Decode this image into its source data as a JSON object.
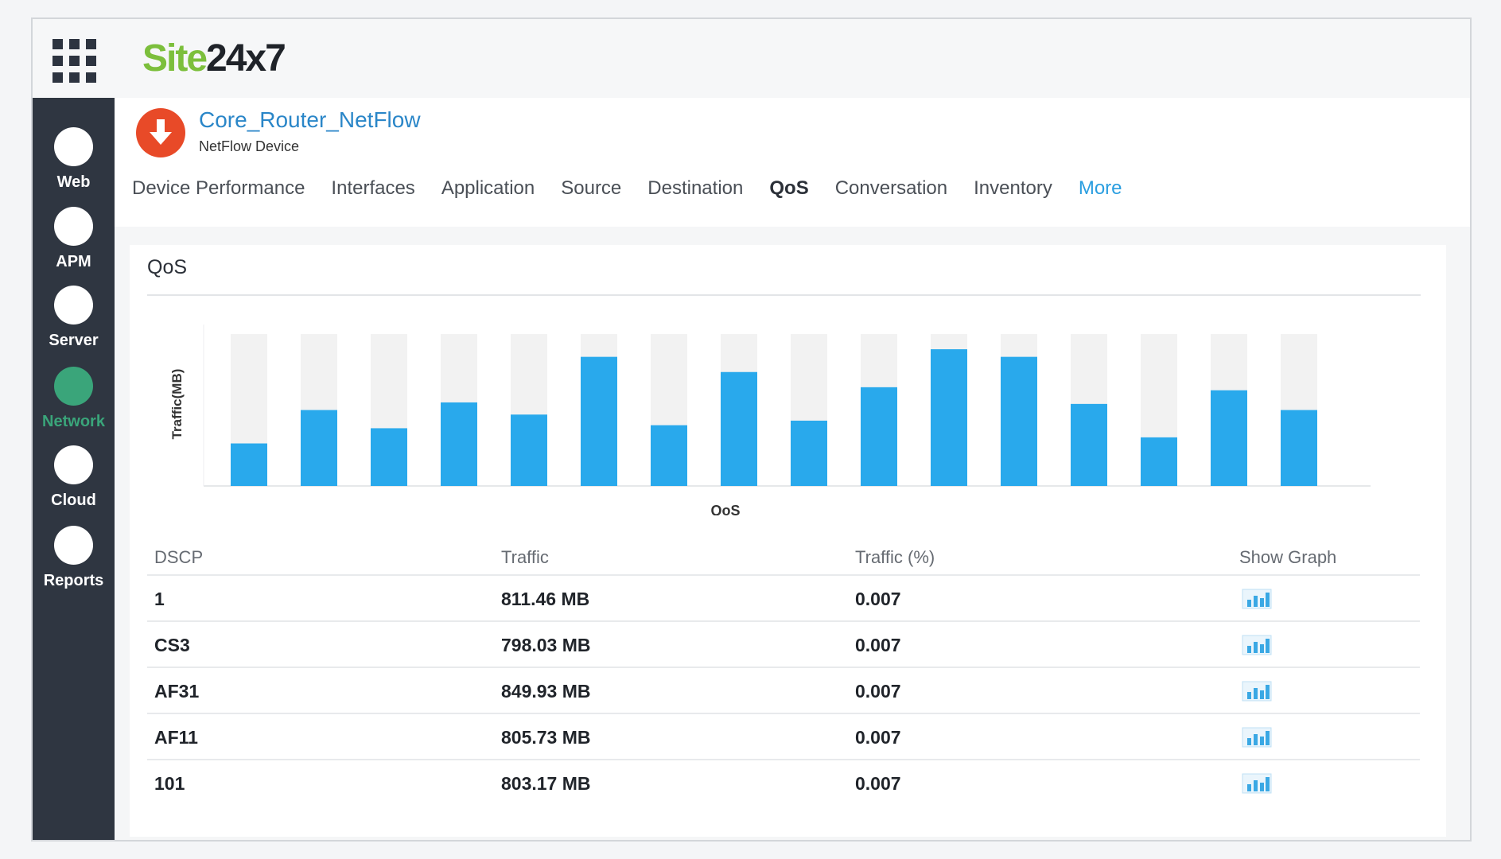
{
  "app": {
    "logo_left": "Site",
    "logo_right": "24x7"
  },
  "sidebar": {
    "items": [
      {
        "label": "Web",
        "active": false
      },
      {
        "label": "APM",
        "active": false
      },
      {
        "label": "Server",
        "active": false
      },
      {
        "label": "Network",
        "active": true
      },
      {
        "label": "Cloud",
        "active": false
      },
      {
        "label": "Reports",
        "active": false
      }
    ]
  },
  "device": {
    "name": "Core_Router_NetFlow",
    "type": "NetFlow Device",
    "status": "down",
    "status_color": "#e84a28"
  },
  "tabs": [
    {
      "label": "Device Performance"
    },
    {
      "label": "Interfaces"
    },
    {
      "label": "Application"
    },
    {
      "label": "Source"
    },
    {
      "label": "Destination"
    },
    {
      "label": "QoS",
      "active": true
    },
    {
      "label": "Conversation"
    },
    {
      "label": "Inventory"
    },
    {
      "label": "More",
      "link": true
    }
  ],
  "panel": {
    "title": "QoS"
  },
  "chart_data": {
    "type": "bar",
    "xlabel": "QoS",
    "ylabel": "Traffic(MB)",
    "values": [
      28,
      50,
      38,
      55,
      47,
      85,
      40,
      75,
      43,
      65,
      90,
      85,
      54,
      32,
      63,
      50
    ],
    "max_fill": 100,
    "bar_color": "#29a9ec",
    "track_color": "#f2f2f2",
    "grid": false
  },
  "table": {
    "headers": {
      "dscp": "DSCP",
      "traffic": "Traffic",
      "percent": "Traffic (%)",
      "graph": "Show Graph"
    },
    "rows": [
      {
        "dscp": "1",
        "traffic": "811.46 MB",
        "percent": "0.007"
      },
      {
        "dscp": "CS3",
        "traffic": "798.03 MB",
        "percent": "0.007"
      },
      {
        "dscp": "AF31",
        "traffic": "849.93 MB",
        "percent": "0.007"
      },
      {
        "dscp": "AF11",
        "traffic": "805.73 MB",
        "percent": "0.007"
      },
      {
        "dscp": "101",
        "traffic": "803.17 MB",
        "percent": "0.007"
      }
    ]
  }
}
